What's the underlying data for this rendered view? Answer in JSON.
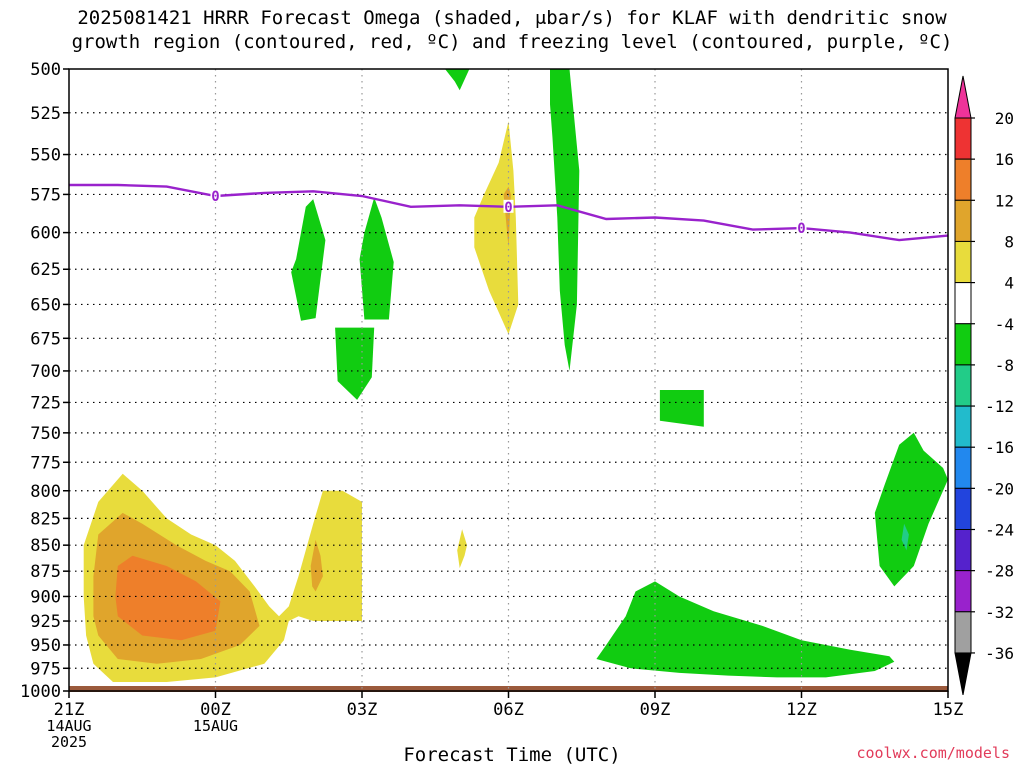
{
  "title": "2025081421 HRRR Forecast Omega (shaded, μbar/s) for KLAF with dendritic snow\ngrowth region (contoured, red, ºC) and freezing level (contoured, purple, ºC)",
  "credit": "coolwx.com/models",
  "chart_data": {
    "type": "heatmap",
    "title": "2025081421 HRRR Forecast Omega (shaded, μbar/s) for KLAF with dendritic snow growth region (contoured, red, ºC) and freezing level (contoured, purple, ºC)",
    "xlabel": "Forecast Time (UTC)",
    "ylabel": "",
    "xlim": [
      0,
      18
    ],
    "ylim": [
      1000,
      500
    ],
    "y_ticks": [
      500,
      525,
      550,
      575,
      600,
      625,
      650,
      675,
      700,
      725,
      750,
      775,
      800,
      825,
      850,
      875,
      900,
      925,
      950,
      975,
      1000
    ],
    "x_ticks": [
      {
        "x": 0,
        "lines": [
          "21Z",
          "14AUG",
          "2025"
        ]
      },
      {
        "x": 3,
        "lines": [
          "00Z",
          "15AUG"
        ]
      },
      {
        "x": 6,
        "lines": [
          "03Z"
        ]
      },
      {
        "x": 9,
        "lines": [
          "06Z"
        ]
      },
      {
        "x": 12,
        "lines": [
          "09Z"
        ]
      },
      {
        "x": 15,
        "lines": [
          "12Z"
        ]
      },
      {
        "x": 18,
        "lines": [
          "15Z"
        ]
      }
    ],
    "grid": true,
    "colorbar": {
      "labels": [
        "20",
        "16",
        "12",
        "8",
        "4",
        "-4",
        "-8",
        "-12",
        "-16",
        "-20",
        "-24",
        "-28",
        "-32",
        "-36"
      ],
      "bins": [
        {
          "lo": 16,
          "hi": 20,
          "color": "#ee3333"
        },
        {
          "lo": 12,
          "hi": 16,
          "color": "#ee7f2a"
        },
        {
          "lo": 8,
          "hi": 12,
          "color": "#e0a52c"
        },
        {
          "lo": 4,
          "hi": 8,
          "color": "#e8dc3c"
        },
        {
          "lo": -4,
          "hi": 4,
          "color": "#ffffff"
        },
        {
          "lo": -8,
          "hi": -4,
          "color": "#11cc11"
        },
        {
          "lo": -12,
          "hi": -8,
          "color": "#22cc88"
        },
        {
          "lo": -16,
          "hi": -12,
          "color": "#22bbcc"
        },
        {
          "lo": -20,
          "hi": -16,
          "color": "#2288ee"
        },
        {
          "lo": -24,
          "hi": -20,
          "color": "#2244dd"
        },
        {
          "lo": -28,
          "hi": -24,
          "color": "#5522cc"
        },
        {
          "lo": -32,
          "hi": -28,
          "color": "#9922cc"
        },
        {
          "lo": -36,
          "hi": -32,
          "color": "#a0a0a0"
        }
      ],
      "top_color": "#ee3399",
      "bottom_color": "#000000"
    },
    "surface_color": "#9b5a3c",
    "freezing_level": {
      "label": "0",
      "color": "#9922cc",
      "points": [
        [
          0,
          569
        ],
        [
          1,
          569
        ],
        [
          2,
          570
        ],
        [
          3,
          576
        ],
        [
          4,
          574
        ],
        [
          5,
          573
        ],
        [
          6,
          576
        ],
        [
          7,
          583
        ],
        [
          8,
          582
        ],
        [
          9,
          583
        ],
        [
          10,
          582
        ],
        [
          11,
          591
        ],
        [
          12,
          590
        ],
        [
          13,
          592
        ],
        [
          14,
          598
        ],
        [
          15,
          597
        ],
        [
          16,
          600
        ],
        [
          17,
          605
        ],
        [
          18,
          602
        ]
      ],
      "label_points": [
        [
          3,
          576
        ],
        [
          9,
          583
        ],
        [
          15,
          597
        ]
      ]
    },
    "regions": [
      {
        "omega": 6,
        "color": "#e8dc3c",
        "points": [
          [
            0.5,
            970
          ],
          [
            0.9,
            990
          ],
          [
            2.0,
            990
          ],
          [
            3.0,
            985
          ],
          [
            4.0,
            970
          ],
          [
            4.4,
            945
          ],
          [
            4.5,
            925
          ],
          [
            4.7,
            920
          ],
          [
            5.0,
            925
          ],
          [
            6.0,
            925
          ],
          [
            6.0,
            810
          ],
          [
            5.6,
            800
          ],
          [
            5.2,
            800
          ],
          [
            5.0,
            830
          ],
          [
            4.7,
            880
          ],
          [
            4.5,
            910
          ],
          [
            4.3,
            920
          ],
          [
            4.1,
            910
          ],
          [
            3.8,
            890
          ],
          [
            3.4,
            865
          ],
          [
            3.0,
            850
          ],
          [
            2.5,
            840
          ],
          [
            2.0,
            825
          ],
          [
            1.5,
            800
          ],
          [
            1.1,
            785
          ],
          [
            0.6,
            810
          ],
          [
            0.3,
            850
          ],
          [
            0.3,
            900
          ],
          [
            0.35,
            940
          ]
        ]
      },
      {
        "omega": 10,
        "color": "#e0a52c",
        "points": [
          [
            0.6,
            940
          ],
          [
            1.0,
            965
          ],
          [
            1.8,
            970
          ],
          [
            2.7,
            965
          ],
          [
            3.5,
            950
          ],
          [
            3.9,
            930
          ],
          [
            3.7,
            895
          ],
          [
            3.3,
            875
          ],
          [
            2.8,
            865
          ],
          [
            2.2,
            850
          ],
          [
            1.5,
            830
          ],
          [
            1.1,
            820
          ],
          [
            0.6,
            840
          ],
          [
            0.5,
            880
          ],
          [
            0.5,
            920
          ]
        ]
      },
      {
        "omega": 14,
        "color": "#ee7f2a",
        "points": [
          [
            1.0,
            920
          ],
          [
            1.5,
            940
          ],
          [
            2.3,
            945
          ],
          [
            3.0,
            935
          ],
          [
            3.1,
            905
          ],
          [
            2.6,
            885
          ],
          [
            2.0,
            870
          ],
          [
            1.3,
            860
          ],
          [
            1.0,
            870
          ],
          [
            0.95,
            900
          ]
        ]
      },
      {
        "omega": 6,
        "color": "#e8dc3c",
        "points": [
          [
            5.0,
            900
          ],
          [
            5.2,
            895
          ],
          [
            5.35,
            870
          ],
          [
            5.2,
            840
          ],
          [
            5.0,
            835
          ],
          [
            4.9,
            860
          ],
          [
            4.85,
            890
          ]
        ]
      },
      {
        "omega": 10,
        "color": "#e0a52c",
        "points": [
          [
            5.05,
            895
          ],
          [
            5.2,
            880
          ],
          [
            5.15,
            860
          ],
          [
            5.05,
            845
          ],
          [
            4.95,
            870
          ],
          [
            4.98,
            890
          ]
        ]
      },
      {
        "omega": 6,
        "color": "#e8dc3c",
        "points": [
          [
            8.0,
            872
          ],
          [
            8.1,
            860
          ],
          [
            8.15,
            850
          ],
          [
            8.05,
            835
          ],
          [
            7.95,
            855
          ]
        ]
      },
      {
        "omega": 6,
        "color": "#e8dc3c",
        "points": [
          [
            8.3,
            610
          ],
          [
            8.6,
            640
          ],
          [
            9.0,
            672
          ],
          [
            9.2,
            650
          ],
          [
            9.15,
            590
          ],
          [
            9.1,
            560
          ],
          [
            9.0,
            530
          ],
          [
            8.8,
            555
          ],
          [
            8.5,
            575
          ],
          [
            8.3,
            590
          ]
        ]
      },
      {
        "omega": 10,
        "color": "#e0a52c",
        "points": [
          [
            8.9,
            575
          ],
          [
            9.0,
            610
          ],
          [
            9.05,
            575
          ],
          [
            9.0,
            570
          ]
        ]
      },
      {
        "omega": -6,
        "color": "#11cc11",
        "points": [
          [
            7.7,
            500
          ],
          [
            8.2,
            500
          ],
          [
            8.0,
            512
          ],
          [
            7.9,
            507
          ]
        ]
      },
      {
        "omega": -6,
        "color": "#11cc11",
        "points": [
          [
            9.85,
            500
          ],
          [
            10.25,
            500
          ],
          [
            10.45,
            560
          ],
          [
            10.4,
            650
          ],
          [
            10.25,
            700
          ],
          [
            10.15,
            680
          ],
          [
            10.05,
            640
          ],
          [
            10.0,
            590
          ],
          [
            9.9,
            540
          ],
          [
            9.85,
            520
          ]
        ]
      },
      {
        "omega": -6,
        "color": "#11cc11",
        "points": [
          [
            4.55,
            627
          ],
          [
            4.75,
            662
          ],
          [
            5.05,
            660
          ],
          [
            5.25,
            605
          ],
          [
            5.0,
            578
          ],
          [
            4.85,
            583
          ],
          [
            4.65,
            618
          ]
        ]
      },
      {
        "omega": -6,
        "color": "#11cc11",
        "points": [
          [
            5.45,
            667
          ],
          [
            6.25,
            667
          ],
          [
            6.2,
            705
          ],
          [
            5.9,
            723
          ],
          [
            5.5,
            708
          ]
        ]
      },
      {
        "omega": -6,
        "color": "#11cc11",
        "points": [
          [
            5.95,
            618
          ],
          [
            6.05,
            661
          ],
          [
            6.55,
            661
          ],
          [
            6.65,
            620
          ],
          [
            6.4,
            590
          ],
          [
            6.25,
            577
          ],
          [
            6.05,
            600
          ]
        ]
      },
      {
        "omega": -6,
        "color": "#11cc11",
        "points": [
          [
            12.1,
            715
          ],
          [
            13.0,
            715
          ],
          [
            13.0,
            745
          ],
          [
            12.1,
            740
          ]
        ]
      },
      {
        "omega": -6,
        "color": "#11cc11",
        "points": [
          [
            16.5,
            820
          ],
          [
            16.6,
            870
          ],
          [
            16.9,
            890
          ],
          [
            17.3,
            870
          ],
          [
            17.6,
            830
          ],
          [
            18.0,
            790
          ],
          [
            17.9,
            780
          ],
          [
            17.5,
            765
          ],
          [
            17.3,
            750
          ],
          [
            17.0,
            760
          ],
          [
            16.7,
            795
          ]
        ]
      },
      {
        "omega": -10,
        "color": "#22cc88",
        "points": [
          [
            17.05,
            845
          ],
          [
            17.15,
            855
          ],
          [
            17.2,
            840
          ],
          [
            17.1,
            830
          ]
        ]
      },
      {
        "omega": -6,
        "color": "#11cc11",
        "points": [
          [
            10.8,
            965
          ],
          [
            11.5,
            975
          ],
          [
            12.5,
            980
          ],
          [
            13.5,
            983
          ],
          [
            14.5,
            985
          ],
          [
            15.5,
            985
          ],
          [
            16.5,
            978
          ],
          [
            16.9,
            968
          ],
          [
            16.8,
            962
          ],
          [
            16.0,
            955
          ],
          [
            15.0,
            945
          ],
          [
            14.2,
            930
          ],
          [
            13.2,
            915
          ],
          [
            12.5,
            900
          ],
          [
            12.0,
            885
          ],
          [
            11.6,
            895
          ],
          [
            11.4,
            920
          ],
          [
            11.0,
            950
          ]
        ]
      }
    ]
  }
}
